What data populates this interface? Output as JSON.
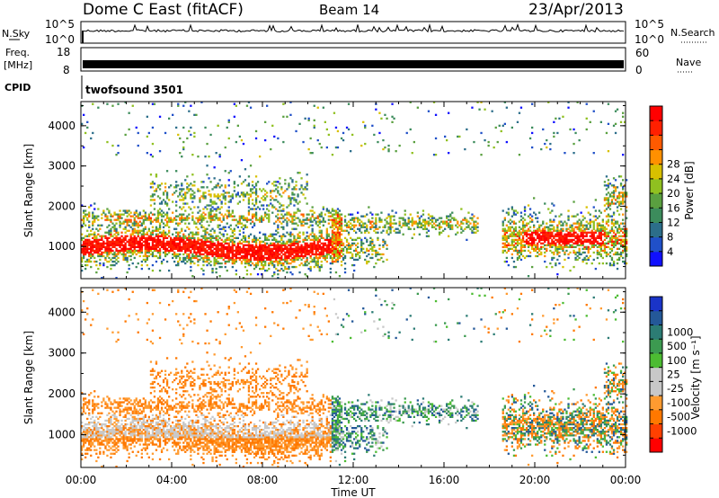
{
  "header": {
    "station": "Dome C East (fitACF)",
    "beam": "Beam 14",
    "date": "23/Apr/2013"
  },
  "panels": {
    "nsky": {
      "label": "N.Sky",
      "ticks": [
        "10^5",
        "10^0"
      ],
      "right_label": "N.Search",
      "right_ticks": [
        "10^5",
        "10^0"
      ]
    },
    "freq": {
      "label_line1": "Freq.",
      "label_line2": "[MHz]",
      "ticks": [
        "18",
        "8"
      ],
      "right_label": "Nave",
      "right_ticks": [
        "60",
        "0"
      ]
    },
    "cpid": {
      "label": "CPID",
      "value": "twofsound 3501"
    }
  },
  "colors": {
    "power": [
      "#1010ff",
      "#2050c8",
      "#2c6e8a",
      "#3c8c5c",
      "#5aa040",
      "#90c020",
      "#d8c000",
      "#ff9000",
      "#ff5a00",
      "#ff2000",
      "#ff0000"
    ],
    "velocity": [
      "#ff0000",
      "#ff4000",
      "#ff7800",
      "#ff9b30",
      "#c8c8c8",
      "#c8c8c8",
      "#4cbc32",
      "#3c9a50",
      "#2c7c74",
      "#245898",
      "#1a34c8"
    ]
  },
  "chart_data": [
    {
      "type": "heatmap",
      "name": "Power",
      "ylabel": "Slant Range [km]",
      "yticks": [
        "1000",
        "2000",
        "3000",
        "4000"
      ],
      "ylim": [
        200,
        4600
      ],
      "colorbar_label": "Power [dB]",
      "colorbar_ticks": [
        "4",
        "8",
        "12",
        "16",
        "20",
        "24",
        "28"
      ],
      "colorbar_range": [
        0,
        32
      ]
    },
    {
      "type": "heatmap",
      "name": "Velocity",
      "ylabel": "Slant Range [km]",
      "yticks": [
        "1000",
        "2000",
        "3000",
        "4000"
      ],
      "ylim": [
        200,
        4600
      ],
      "colorbar_label": "Velocity [m s⁻¹]",
      "colorbar_ticks": [
        "-1000",
        "-500",
        "-100",
        "-25",
        "25",
        "100",
        "500",
        "1000"
      ]
    }
  ],
  "xaxis": {
    "label": "Time UT",
    "ticks": [
      "00:00",
      "04:00",
      "08:00",
      "12:00",
      "16:00",
      "20:00",
      "00:00"
    ],
    "range_hours": [
      0,
      24
    ]
  }
}
